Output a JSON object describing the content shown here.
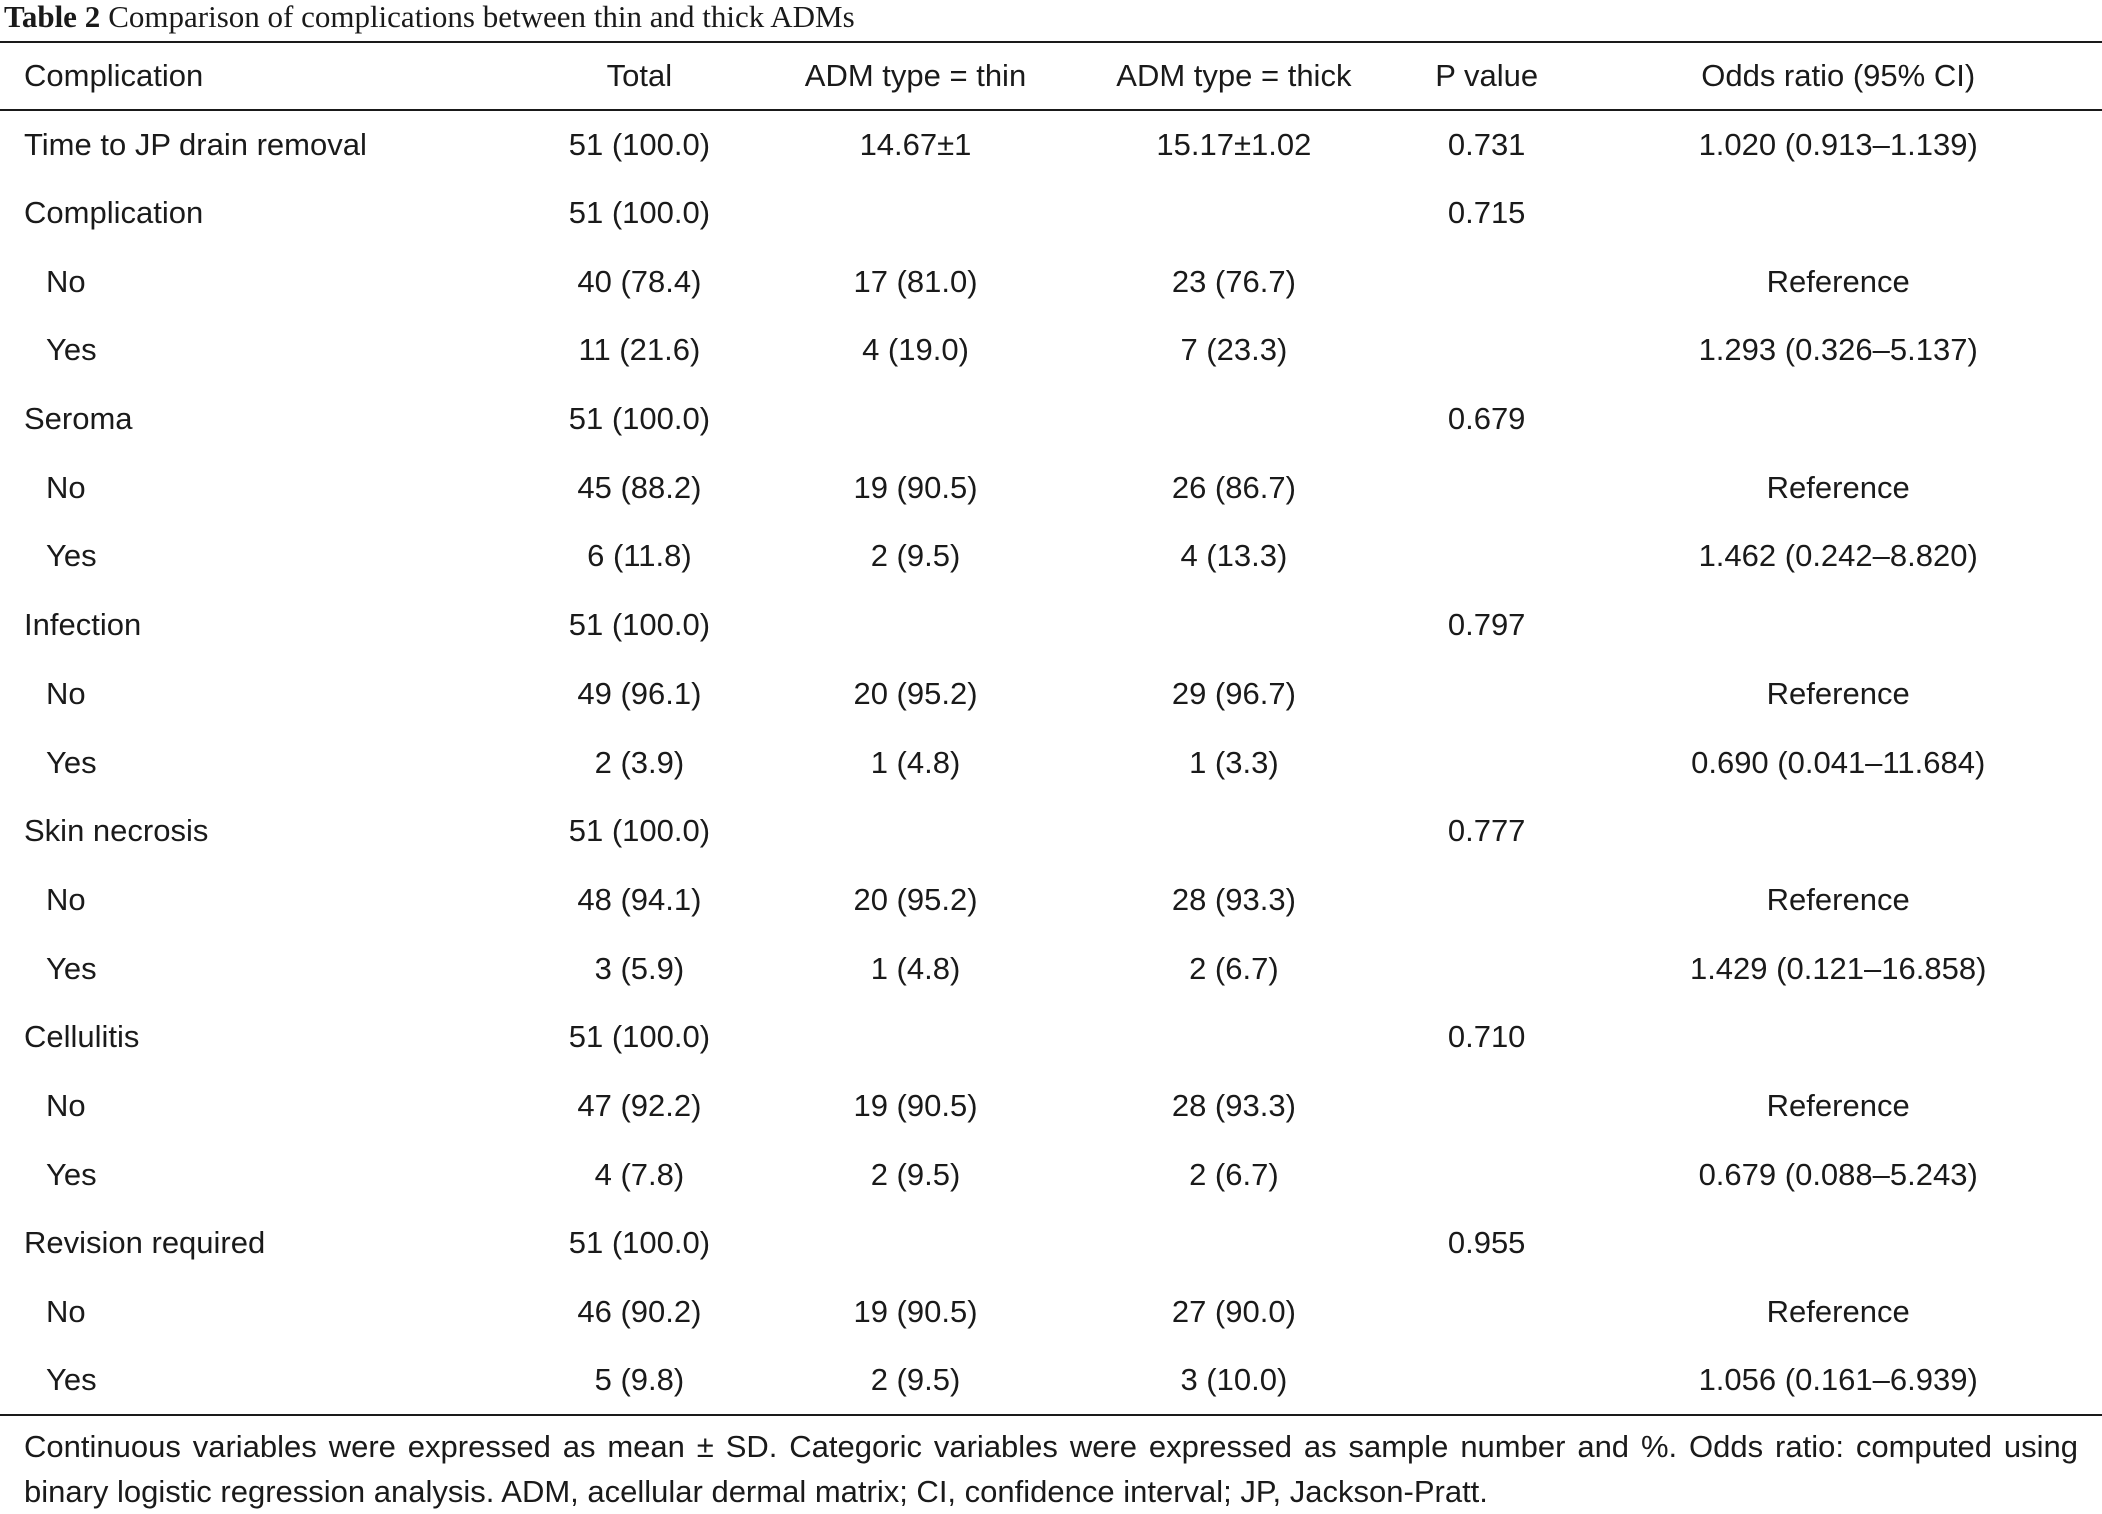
{
  "caption": {
    "label": "Table 2",
    "text": "Comparison of complications between thin and thick ADMs"
  },
  "table": {
    "headers": [
      "Complication",
      "Total",
      "ADM type = thin",
      "ADM type = thick",
      "P value",
      "Odds ratio (95% CI)"
    ],
    "rows": [
      {
        "label": "Time to JP drain removal",
        "total": "51 (100.0)",
        "thin": "14.67±1",
        "thick": "15.17±1.02",
        "p": "0.731",
        "or": "1.020 (0.913–1.139)"
      },
      {
        "label": "Complication",
        "total": "51 (100.0)",
        "thin": "",
        "thick": "",
        "p": "0.715",
        "or": ""
      },
      {
        "label": "No",
        "total": "40 (78.4)",
        "thin": "17 (81.0)",
        "thick": "23 (76.7)",
        "p": "",
        "or": "Reference"
      },
      {
        "label": "Yes",
        "total": "11 (21.6)",
        "thin": "4 (19.0)",
        "thick": "7 (23.3)",
        "p": "",
        "or": "1.293 (0.326–5.137)"
      },
      {
        "label": "Seroma",
        "total": "51 (100.0)",
        "thin": "",
        "thick": "",
        "p": "0.679",
        "or": ""
      },
      {
        "label": "No",
        "total": "45 (88.2)",
        "thin": "19 (90.5)",
        "thick": "26 (86.7)",
        "p": "",
        "or": "Reference"
      },
      {
        "label": "Yes",
        "total": "6 (11.8)",
        "thin": "2 (9.5)",
        "thick": "4 (13.3)",
        "p": "",
        "or": "1.462 (0.242–8.820)"
      },
      {
        "label": "Infection",
        "total": "51 (100.0)",
        "thin": "",
        "thick": "",
        "p": "0.797",
        "or": ""
      },
      {
        "label": "No",
        "total": "49 (96.1)",
        "thin": "20 (95.2)",
        "thick": "29 (96.7)",
        "p": "",
        "or": "Reference"
      },
      {
        "label": "Yes",
        "total": "2 (3.9)",
        "thin": "1 (4.8)",
        "thick": "1 (3.3)",
        "p": "",
        "or": "0.690 (0.041–11.684)"
      },
      {
        "label": "Skin necrosis",
        "total": "51 (100.0)",
        "thin": "",
        "thick": "",
        "p": "0.777",
        "or": ""
      },
      {
        "label": "No",
        "total": "48 (94.1)",
        "thin": "20 (95.2)",
        "thick": "28 (93.3)",
        "p": "",
        "or": "Reference"
      },
      {
        "label": "Yes",
        "total": "3 (5.9)",
        "thin": "1 (4.8)",
        "thick": "2 (6.7)",
        "p": "",
        "or": "1.429 (0.121–16.858)"
      },
      {
        "label": "Cellulitis",
        "total": "51 (100.0)",
        "thin": "",
        "thick": "",
        "p": "0.710",
        "or": ""
      },
      {
        "label": "No",
        "total": "47 (92.2)",
        "thin": "19 (90.5)",
        "thick": "28 (93.3)",
        "p": "",
        "or": "Reference"
      },
      {
        "label": "Yes",
        "total": "4 (7.8)",
        "thin": "2 (9.5)",
        "thick": "2 (6.7)",
        "p": "",
        "or": "0.679 (0.088–5.243)"
      },
      {
        "label": "Revision required",
        "total": "51 (100.0)",
        "thin": "",
        "thick": "",
        "p": "0.955",
        "or": ""
      },
      {
        "label": "No",
        "total": "46 (90.2)",
        "thin": "19 (90.5)",
        "thick": "27 (90.0)",
        "p": "",
        "or": "Reference"
      },
      {
        "label": "Yes",
        "total": "5 (9.8)",
        "thin": "2 (9.5)",
        "thick": "3 (10.0)",
        "p": "",
        "or": "1.056 (0.161–6.939)"
      }
    ]
  },
  "footnote": "Continuous variables were expressed as mean ± SD. Categoric variables were expressed as sample number and %. Odds ratio: computed using binary logistic regression analysis. ADM, acellular dermal matrix; CI, confidence interval; JP, Jackson-Pratt."
}
